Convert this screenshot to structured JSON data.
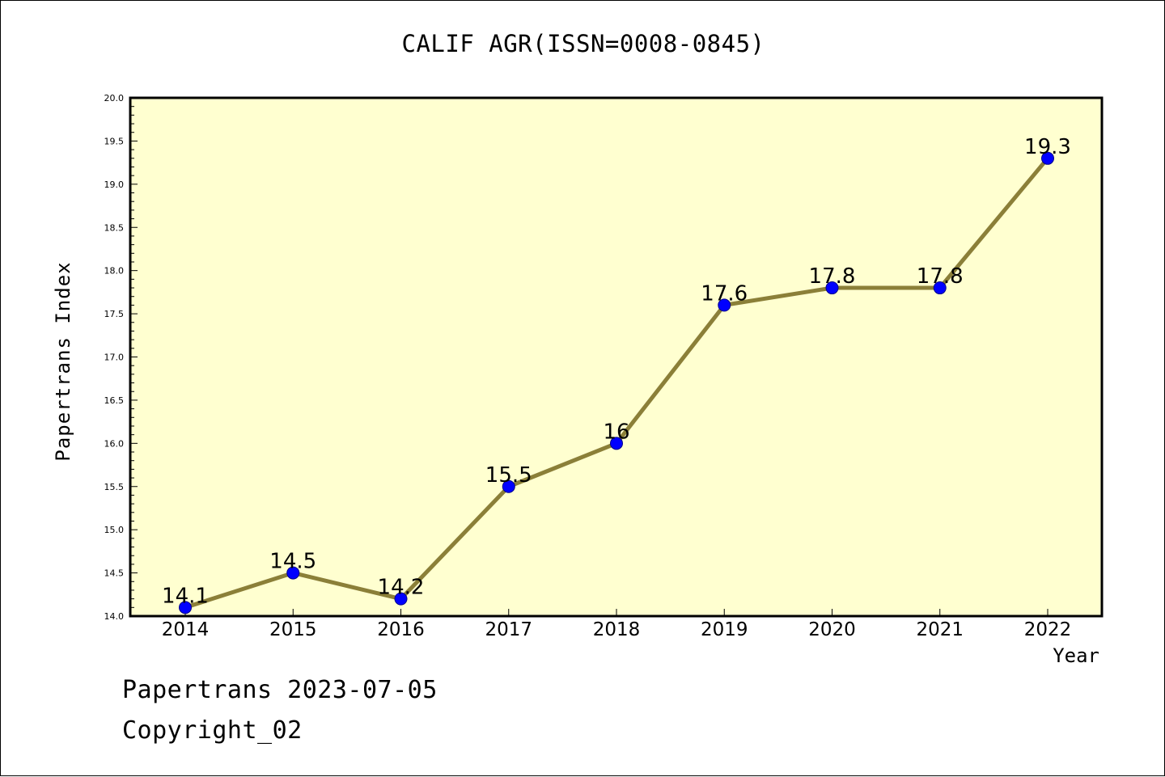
{
  "chart_data": {
    "type": "line",
    "title": "CALIF AGR(ISSN=0008-0845)",
    "xlabel": "Year",
    "ylabel": "Papertrans Index",
    "categories": [
      "2014",
      "2015",
      "2016",
      "2017",
      "2018",
      "2019",
      "2020",
      "2021",
      "2022"
    ],
    "values": [
      14.1,
      14.5,
      14.2,
      15.5,
      16,
      17.6,
      17.8,
      17.8,
      19.3
    ],
    "data_labels": [
      "14.1",
      "14.5",
      "14.2",
      "15.5",
      "16",
      "17.6",
      "17.8",
      "17.8",
      "19.3"
    ],
    "ylim": [
      14.0,
      20.0
    ],
    "yticks": [
      "14.0",
      "14.5",
      "15.0",
      "15.5",
      "16.0",
      "16.5",
      "17.0",
      "17.5",
      "18.0",
      "18.5",
      "19.0",
      "19.5",
      "20.0"
    ],
    "grid": false,
    "colors": {
      "line": "#8b7f38",
      "marker": "#0000ff",
      "plot_background": "#ffffd0"
    }
  },
  "footer": {
    "line1": "Papertrans 2023-07-05",
    "line2": "Copyright_02"
  }
}
